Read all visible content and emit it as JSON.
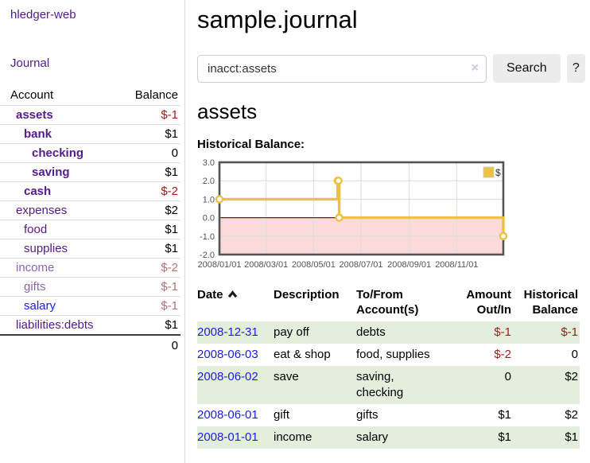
{
  "app": {
    "title": "hledger-web"
  },
  "sidebar": {
    "journal_label": "Journal",
    "accounts": {
      "headers": {
        "account": "Account",
        "balance": "Balance"
      },
      "rows": [
        {
          "name": "assets",
          "balance": "$-1"
        },
        {
          "name": "bank",
          "balance": "$1"
        },
        {
          "name": "checking",
          "balance": "0"
        },
        {
          "name": "saving",
          "balance": "$1"
        },
        {
          "name": "cash",
          "balance": "$-2"
        },
        {
          "name": "expenses",
          "balance": "$2"
        },
        {
          "name": "food",
          "balance": "$1"
        },
        {
          "name": "supplies",
          "balance": "$1"
        },
        {
          "name": "income",
          "balance": "$-2"
        },
        {
          "name": "gifts",
          "balance": "$-1"
        },
        {
          "name": "salary",
          "balance": "$-1"
        },
        {
          "name": "liabilities:debts",
          "balance": "$1"
        }
      ],
      "total": "0"
    }
  },
  "main": {
    "title": "sample.journal",
    "search": {
      "value": "inacct:assets",
      "clear_icon": "×",
      "search_label": "Search",
      "help_label": "?"
    },
    "account_heading": "assets",
    "chart_heading": "Historical Balance:"
  },
  "chart_data": {
    "type": "line",
    "title": "Historical Balance:",
    "xlabel": "",
    "ylabel": "",
    "xlim": [
      0,
      365
    ],
    "ylim": [
      -2,
      3
    ],
    "grid": true,
    "legend": {
      "label": "$",
      "position": "top-right"
    },
    "negative_region_color": "#fbdada",
    "zero_line_color": "#a40000",
    "series": [
      {
        "name": "$",
        "color": "#edc240",
        "step": true,
        "dates": [
          "2008-01-01",
          "2008-06-01",
          "2008-06-02",
          "2008-06-03",
          "2008-12-31"
        ],
        "points": [
          {
            "x": 0,
            "y": 1
          },
          {
            "x": 152,
            "y": 2
          },
          {
            "x": 153,
            "y": 2
          },
          {
            "x": 154,
            "y": 0
          },
          {
            "x": 365,
            "y": -1
          }
        ]
      }
    ],
    "xticks": [
      {
        "v": 0,
        "label": "2008/01/01"
      },
      {
        "v": 60,
        "label": "2008/03/01"
      },
      {
        "v": 121,
        "label": "2008/05/01"
      },
      {
        "v": 182,
        "label": "2008/07/01"
      },
      {
        "v": 244,
        "label": "2008/09/01"
      },
      {
        "v": 305,
        "label": "2008/11/01"
      }
    ],
    "yticks": [
      {
        "v": -2,
        "label": "-2.0"
      },
      {
        "v": -1,
        "label": "-1.0"
      },
      {
        "v": 0,
        "label": "0.0"
      },
      {
        "v": 1,
        "label": "1.0"
      },
      {
        "v": 2,
        "label": "2.0"
      },
      {
        "v": 3,
        "label": "3.0"
      }
    ]
  },
  "register": {
    "headers": {
      "date": "Date",
      "description": "Description",
      "account": "To/From Account(s)",
      "amount": "Amount Out/In",
      "balance": "Historical Balance"
    },
    "rows": [
      {
        "date": "2008-12-31",
        "description": "pay off",
        "account": "debts",
        "amount": "$-1",
        "balance": "$-1"
      },
      {
        "date": "2008-06-03",
        "description": "eat & shop",
        "account": "food, supplies",
        "amount": "$-2",
        "balance": "0"
      },
      {
        "date": "2008-06-02",
        "description": "save",
        "account": "saving, checking",
        "amount": "0",
        "balance": "$2"
      },
      {
        "date": "2008-06-01",
        "description": "gift",
        "account": "gifts",
        "amount": "$1",
        "balance": "$2"
      },
      {
        "date": "2008-01-01",
        "description": "income",
        "account": "salary",
        "amount": "$1",
        "balance": "$1"
      }
    ]
  },
  "colors": {
    "link_purple": "#551a8b",
    "link_purple_dim": "#8c64ad",
    "link_blue": "#1c1ce8",
    "negative_strong": "#9e1b1b",
    "negative_soft": "#b47272",
    "row_green": "#e3eedc",
    "series_yellow": "#edc240",
    "negative_region_pink": "#fbdada",
    "zero_line_red": "#a40000",
    "button_gray": "#ececec"
  }
}
